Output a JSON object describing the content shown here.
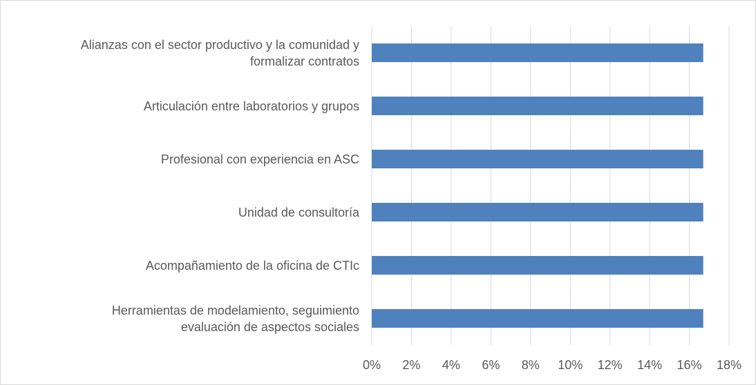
{
  "chart_data": {
    "type": "barh",
    "categories": [
      "Alianzas con el sector productivo y la comunidad y\nformalizar contratos",
      "Articulación entre laboratorios y grupos",
      "Profesional con experiencia en ASC",
      "Unidad de consultoría",
      "Acompañamiento de la oficina de CTIc",
      "Herramientas de modelamiento, seguimiento\nevaluación de aspectos sociales"
    ],
    "values": [
      16.7,
      16.7,
      16.7,
      16.7,
      16.7,
      16.7
    ],
    "color": "#4f81bd",
    "xlim": [
      0,
      18
    ],
    "xticks": [
      {
        "value": 0,
        "label": "0%"
      },
      {
        "value": 2,
        "label": "2%"
      },
      {
        "value": 4,
        "label": "4%"
      },
      {
        "value": 6,
        "label": "6%"
      },
      {
        "value": 8,
        "label": "8%"
      },
      {
        "value": 10,
        "label": "10%"
      },
      {
        "value": 12,
        "label": "12%"
      },
      {
        "value": 14,
        "label": "14%"
      },
      {
        "value": 16,
        "label": "16%"
      },
      {
        "value": 18,
        "label": "18%"
      }
    ],
    "grid": true
  }
}
